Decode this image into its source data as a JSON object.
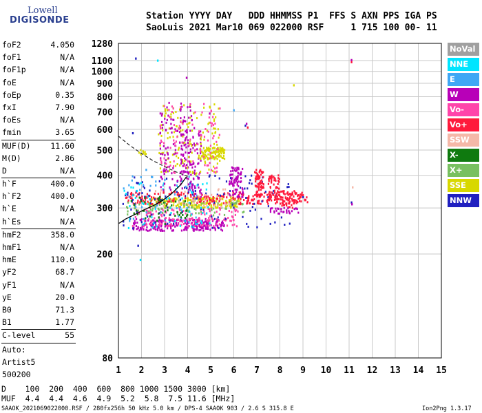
{
  "logo": {
    "line1": "Lowell",
    "line2": "DIGISONDE"
  },
  "header": {
    "line1": "Station YYYY DAY   DDD HHMMSS P1  FFS S AXN PPS IGA PS",
    "line2": "SaoLuis 2021 Mar10 069 022000 RSF     1 715 100 00- 11"
  },
  "params": {
    "group1": [
      {
        "name": "foF2",
        "value": "4.050"
      },
      {
        "name": "foF1",
        "value": "N/A"
      },
      {
        "name": "foF1p",
        "value": "N/A"
      },
      {
        "name": "foE",
        "value": "N/A"
      },
      {
        "name": "foEp",
        "value": "0.35"
      },
      {
        "name": "fxI",
        "value": "7.90"
      },
      {
        "name": "foEs",
        "value": "N/A"
      },
      {
        "name": "fmin",
        "value": "3.65"
      }
    ],
    "group2": [
      {
        "name": "MUF(D)",
        "value": "11.60"
      },
      {
        "name": "M(D)",
        "value": "2.86"
      },
      {
        "name": "D",
        "value": "N/A"
      }
    ],
    "group3": [
      {
        "name": "h`F",
        "value": "400.0"
      },
      {
        "name": "h`F2",
        "value": "400.0"
      },
      {
        "name": "h`E",
        "value": "N/A"
      },
      {
        "name": "h`Es",
        "value": "N/A"
      }
    ],
    "group4": [
      {
        "name": "hmF2",
        "value": "358.0"
      },
      {
        "name": "hmF1",
        "value": "N/A"
      },
      {
        "name": "hmE",
        "value": "110.0"
      },
      {
        "name": "yF2",
        "value": "68.7"
      },
      {
        "name": "yF1",
        "value": "N/A"
      },
      {
        "name": "yE",
        "value": "20.0"
      },
      {
        "name": "B0",
        "value": "71.3"
      },
      {
        "name": "B1",
        "value": "1.77"
      }
    ],
    "group5": [
      {
        "name": "C-level",
        "value": "55"
      }
    ],
    "autoscaling": {
      "line1": "Auto:",
      "line2": "Artist5",
      "line3": "500200"
    }
  },
  "legend": [
    {
      "label": "NoVal",
      "color": "#a0a0a0"
    },
    {
      "label": "NNE",
      "color": "#00e5ff"
    },
    {
      "label": "E",
      "color": "#3fa7f5"
    },
    {
      "label": "W",
      "color": "#b800b8"
    },
    {
      "label": "Vo-",
      "color": "#ff44aa"
    },
    {
      "label": "Vo+",
      "color": "#ff1a3c"
    },
    {
      "label": "SSW",
      "color": "#f5b8a8"
    },
    {
      "label": "X-",
      "color": "#0f7a0f"
    },
    {
      "label": "X+",
      "color": "#78c060"
    },
    {
      "label": "SSE",
      "color": "#d8d800"
    },
    {
      "label": "NNW",
      "color": "#2020c0"
    }
  ],
  "chart_data": {
    "type": "scatter",
    "title": "",
    "xlabel": "",
    "ylabel": "",
    "xlim": [
      1,
      15
    ],
    "ylim": [
      80,
      1280
    ],
    "y_scale": "log",
    "grid": true,
    "x_ticks": [
      1,
      2,
      3,
      4,
      5,
      6,
      7,
      8,
      9,
      10,
      11,
      12,
      13,
      14,
      15
    ],
    "y_ticks": [
      80,
      200,
      300,
      400,
      500,
      600,
      700,
      800,
      900,
      1000,
      1100,
      1280
    ],
    "profile_curve": {
      "x": [
        1.02,
        1.3,
        1.7,
        2.1,
        2.5,
        2.9,
        3.3,
        3.7,
        3.95
      ],
      "y": [
        262,
        272,
        283,
        295,
        306,
        320,
        340,
        368,
        395
      ]
    },
    "dashed_trace": {
      "x": [
        1.0,
        1.5,
        2.0,
        2.5,
        3.0,
        3.5,
        4.05
      ],
      "y": [
        565,
        520,
        485,
        455,
        432,
        412,
        395
      ]
    },
    "echo_clusters": [
      {
        "direction": "W",
        "x_range": [
          1.6,
          5.6
        ],
        "y_range": [
          245,
          272
        ],
        "count": 240
      },
      {
        "direction": "SSE",
        "x_range": [
          2.3,
          6.3
        ],
        "y_range": [
          300,
          330
        ],
        "count": 220
      },
      {
        "direction": "Vo+",
        "x_range": [
          1.3,
          9.2
        ],
        "y_range": [
          310,
          345
        ],
        "count": 260
      },
      {
        "direction": "Vo-",
        "x_range": [
          1.6,
          6.2
        ],
        "y_range": [
          255,
          300
        ],
        "count": 150
      },
      {
        "direction": "X+",
        "x_range": [
          1.3,
          6.5
        ],
        "y_range": [
          280,
          320
        ],
        "count": 90
      },
      {
        "direction": "NNW",
        "x_range": [
          1.2,
          8.5
        ],
        "y_range": [
          250,
          400
        ],
        "count": 120
      },
      {
        "direction": "NNE",
        "x_range": [
          1.2,
          5.0
        ],
        "y_range": [
          250,
          380
        ],
        "count": 60
      },
      {
        "direction": "E",
        "x_range": [
          1.2,
          4.5
        ],
        "y_range": [
          260,
          400
        ],
        "count": 50
      },
      {
        "direction": "X-",
        "x_range": [
          1.5,
          4.0
        ],
        "y_range": [
          260,
          330
        ],
        "count": 40
      },
      {
        "direction": "SSW",
        "x_range": [
          2.5,
          6.0
        ],
        "y_range": [
          300,
          360
        ],
        "count": 40
      },
      {
        "direction": "W",
        "x_range": [
          3.7,
          4.6
        ],
        "y_range": [
          330,
          600
        ],
        "count": 90
      },
      {
        "direction": "W",
        "x_range": [
          5.8,
          6.4
        ],
        "y_range": [
          330,
          430
        ],
        "count": 80
      },
      {
        "direction": "Vo+",
        "x_range": [
          6.9,
          7.3
        ],
        "y_range": [
          330,
          420
        ],
        "count": 70
      },
      {
        "direction": "Vo+",
        "x_range": [
          7.5,
          8.0
        ],
        "y_range": [
          320,
          400
        ],
        "count": 60
      },
      {
        "direction": "Vo+",
        "x_range": [
          8.0,
          8.9
        ],
        "y_range": [
          300,
          350
        ],
        "count": 50
      },
      {
        "direction": "W",
        "x_range": [
          7.5,
          8.8
        ],
        "y_range": [
          285,
          300
        ],
        "count": 30
      },
      {
        "direction": "SSE",
        "x_range": [
          4.6,
          5.6
        ],
        "y_range": [
          460,
          510
        ],
        "count": 100
      },
      {
        "direction": "SSE",
        "x_range": [
          2.7,
          5.4
        ],
        "y_range": [
          400,
          750
        ],
        "count": 140
      },
      {
        "direction": "W",
        "x_range": [
          2.8,
          4.3
        ],
        "y_range": [
          350,
          760
        ],
        "count": 130
      },
      {
        "direction": "Vo-",
        "x_range": [
          2.8,
          5.4
        ],
        "y_range": [
          400,
          750
        ],
        "count": 90
      },
      {
        "direction": "SSE",
        "x_range": [
          1.8,
          2.2
        ],
        "y_range": [
          480,
          500
        ],
        "count": 10
      }
    ],
    "isolated_points": [
      {
        "direction": "NNW",
        "x": 1.75,
        "y": 1120
      },
      {
        "direction": "NNE",
        "x": 2.7,
        "y": 1100
      },
      {
        "direction": "W",
        "x": 11.1,
        "y": 1105
      },
      {
        "direction": "Vo+",
        "x": 11.1,
        "y": 1085
      },
      {
        "direction": "SSE",
        "x": 8.6,
        "y": 885
      },
      {
        "direction": "W",
        "x": 3.95,
        "y": 945
      },
      {
        "direction": "NNW",
        "x": 1.85,
        "y": 215
      },
      {
        "direction": "NNE",
        "x": 1.95,
        "y": 190
      },
      {
        "direction": "NNW",
        "x": 11.1,
        "y": 315
      },
      {
        "direction": "W",
        "x": 11.12,
        "y": 310
      },
      {
        "direction": "SSW",
        "x": 11.15,
        "y": 360
      },
      {
        "direction": "E",
        "x": 6.0,
        "y": 710
      },
      {
        "direction": "NNW",
        "x": 6.5,
        "y": 620
      },
      {
        "direction": "W",
        "x": 6.55,
        "y": 630
      },
      {
        "direction": "Vo+",
        "x": 6.6,
        "y": 610
      },
      {
        "direction": "W",
        "x": 4.95,
        "y": 690
      },
      {
        "direction": "NNW",
        "x": 1.62,
        "y": 580
      },
      {
        "direction": "E",
        "x": 2.2,
        "y": 420
      },
      {
        "direction": "NNW",
        "x": 9.0,
        "y": 330
      }
    ]
  },
  "dmuf": {
    "d_line": "D    100  200  400  600  800 1000 1500 3000 [km]",
    "muf_line": "MUF  4.4  4.4  4.6  4.9  5.2  5.8  7.5 11.6 [MHz]"
  },
  "footer": {
    "info": "SAAOK_2021069022000.RSF / 280fx256h 50 kHz 5.0 km / DPS-4 SAAOK 903 / 2.6 S 315.8 E",
    "version": "Ion2Png 1.3.17"
  }
}
